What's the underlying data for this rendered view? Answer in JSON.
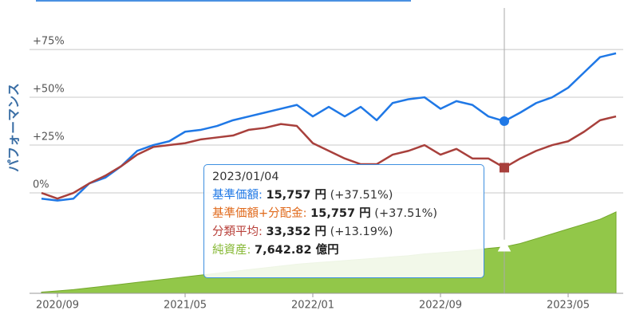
{
  "chart_data": {
    "type": "line",
    "y_label": "パフォーマンス",
    "x": [
      -1,
      0,
      1,
      2,
      3,
      4,
      5,
      6,
      7,
      8,
      9,
      10,
      11,
      12,
      13,
      14,
      15,
      16,
      17,
      18,
      19,
      20,
      21,
      22,
      23,
      24,
      25,
      26,
      27,
      28,
      29,
      30,
      31,
      32,
      33,
      34,
      35
    ],
    "xlim": [
      -1.75,
      35.45
    ],
    "xticks": [
      {
        "value": 0,
        "label": "2020/09"
      },
      {
        "value": 8,
        "label": "2021/05"
      },
      {
        "value": 16,
        "label": "2022/01"
      },
      {
        "value": 24,
        "label": "2022/09"
      },
      {
        "value": 32,
        "label": "2023/05"
      }
    ],
    "ylim": [
      -52.5,
      96.7
    ],
    "yticks": [
      {
        "value": 0,
        "label": "0%"
      },
      {
        "value": 25,
        "label": "+25%"
      },
      {
        "value": 50,
        "label": "+50%"
      },
      {
        "value": 75,
        "label": "+75%"
      }
    ],
    "y2lim": [
      0,
      47000
    ],
    "grid": true,
    "series": [
      {
        "name": "基準価額",
        "color": "#1f78e6",
        "values": [
          -3,
          -4,
          -3,
          5,
          8,
          14,
          22,
          25,
          27,
          32,
          33,
          35,
          38,
          40,
          42,
          44,
          46,
          40,
          45,
          40,
          45,
          38,
          47,
          49,
          50,
          44,
          48,
          46,
          40,
          37.51,
          42,
          47,
          50,
          55,
          63,
          71,
          73
        ]
      },
      {
        "name": "分類平均",
        "color": "#a8403c",
        "values": [
          0,
          -3,
          0,
          5,
          9,
          14,
          20,
          24,
          25,
          26,
          28,
          29,
          30,
          33,
          34,
          36,
          35,
          26,
          22,
          18,
          15,
          15,
          20,
          22,
          25,
          20,
          23,
          18,
          18,
          13.19,
          18,
          22,
          25,
          27,
          32,
          38,
          40
        ]
      },
      {
        "name": "純資産",
        "type": "area",
        "axis": "y2",
        "color": "#8cc43f",
        "values": [
          200,
          400,
          600,
          900,
          1200,
          1500,
          1800,
          2100,
          2400,
          2700,
          3000,
          3300,
          3600,
          3900,
          4200,
          4500,
          4800,
          5000,
          5200,
          5400,
          5600,
          5800,
          6000,
          6200,
          6500,
          6700,
          6900,
          7100,
          7400,
          7642.82,
          8200,
          9000,
          9800,
          10600,
          11400,
          12200,
          13400
        ]
      }
    ],
    "tooltip": {
      "date": "2023/01/04",
      "rows": [
        {
          "label": "基準価額:",
          "value": "15,757 円",
          "change": "(+37.51%)",
          "color": "#1f78e6"
        },
        {
          "label": "基準価額+分配金:",
          "value": "15,757 円",
          "change": "(+37.51%)",
          "color": "#e06a1c"
        },
        {
          "label": "分類平均:",
          "value": "33,352 円",
          "change": "(+13.19%)",
          "color": "#b8403a"
        },
        {
          "label": "純資産:",
          "value": "7,642.82 億円",
          "color": "#86b834"
        }
      ]
    }
  }
}
